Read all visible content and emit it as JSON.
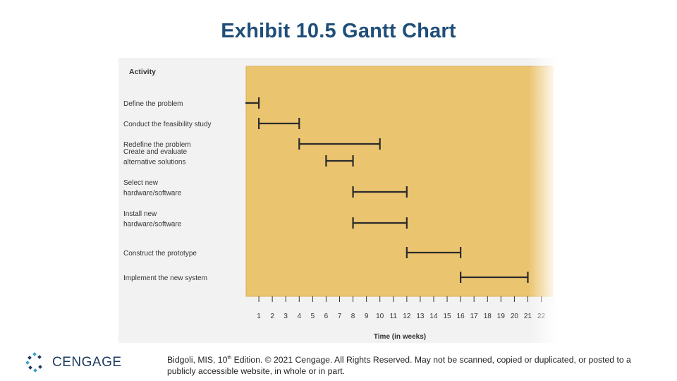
{
  "slide": {
    "title": "Exhibit 10.5 Gantt Chart"
  },
  "chart_data": {
    "type": "gantt",
    "activity_header": "Activity",
    "xlabel": "Time (in weeks)",
    "x_ticks": [
      "1",
      "2",
      "3",
      "4",
      "5",
      "6",
      "7",
      "8",
      "9",
      "10",
      "11",
      "12",
      "13",
      "14",
      "15",
      "16",
      "17",
      "18",
      "19",
      "20",
      "21",
      "22"
    ],
    "activities": [
      {
        "label_lines": [
          "Define the problem"
        ],
        "start": 0.0,
        "end": 1.0
      },
      {
        "label_lines": [
          "Conduct the feasibility study"
        ],
        "start": 1.0,
        "end": 4.0
      },
      {
        "label_lines": [
          "Redefine the problem"
        ],
        "start": 4.0,
        "end": 10.0
      },
      {
        "label_lines": [
          "Create and evaluate",
          "alternative solutions"
        ],
        "start": 6.0,
        "end": 8.0
      },
      {
        "label_lines": [
          "Select new",
          "hardware/software"
        ],
        "start": 8.0,
        "end": 12.0
      },
      {
        "label_lines": [
          "Install new",
          "hardware/software"
        ],
        "start": 8.0,
        "end": 12.0
      },
      {
        "label_lines": [
          "Construct the prototype"
        ],
        "start": 12.0,
        "end": 16.0
      },
      {
        "label_lines": [
          "Implement the new system"
        ],
        "start": 16.0,
        "end": 21.0
      }
    ],
    "colors": {
      "plot_background": "#ebc470",
      "bar_color": "#2b2b2b",
      "text_color": "#333333"
    }
  },
  "branding": {
    "logo_text": "CENGAGE",
    "logo_color": "#1e3a5f",
    "logo_accent": "#3aa0c8"
  },
  "footer": {
    "part1": "Bidgoli, MIS, 10",
    "sup": "th",
    "part2": " Edition. © 2021 Cengage. All Rights Reserved. May not be scanned, copied or duplicated, or posted to a publicly accessible website, in whole or in part."
  }
}
